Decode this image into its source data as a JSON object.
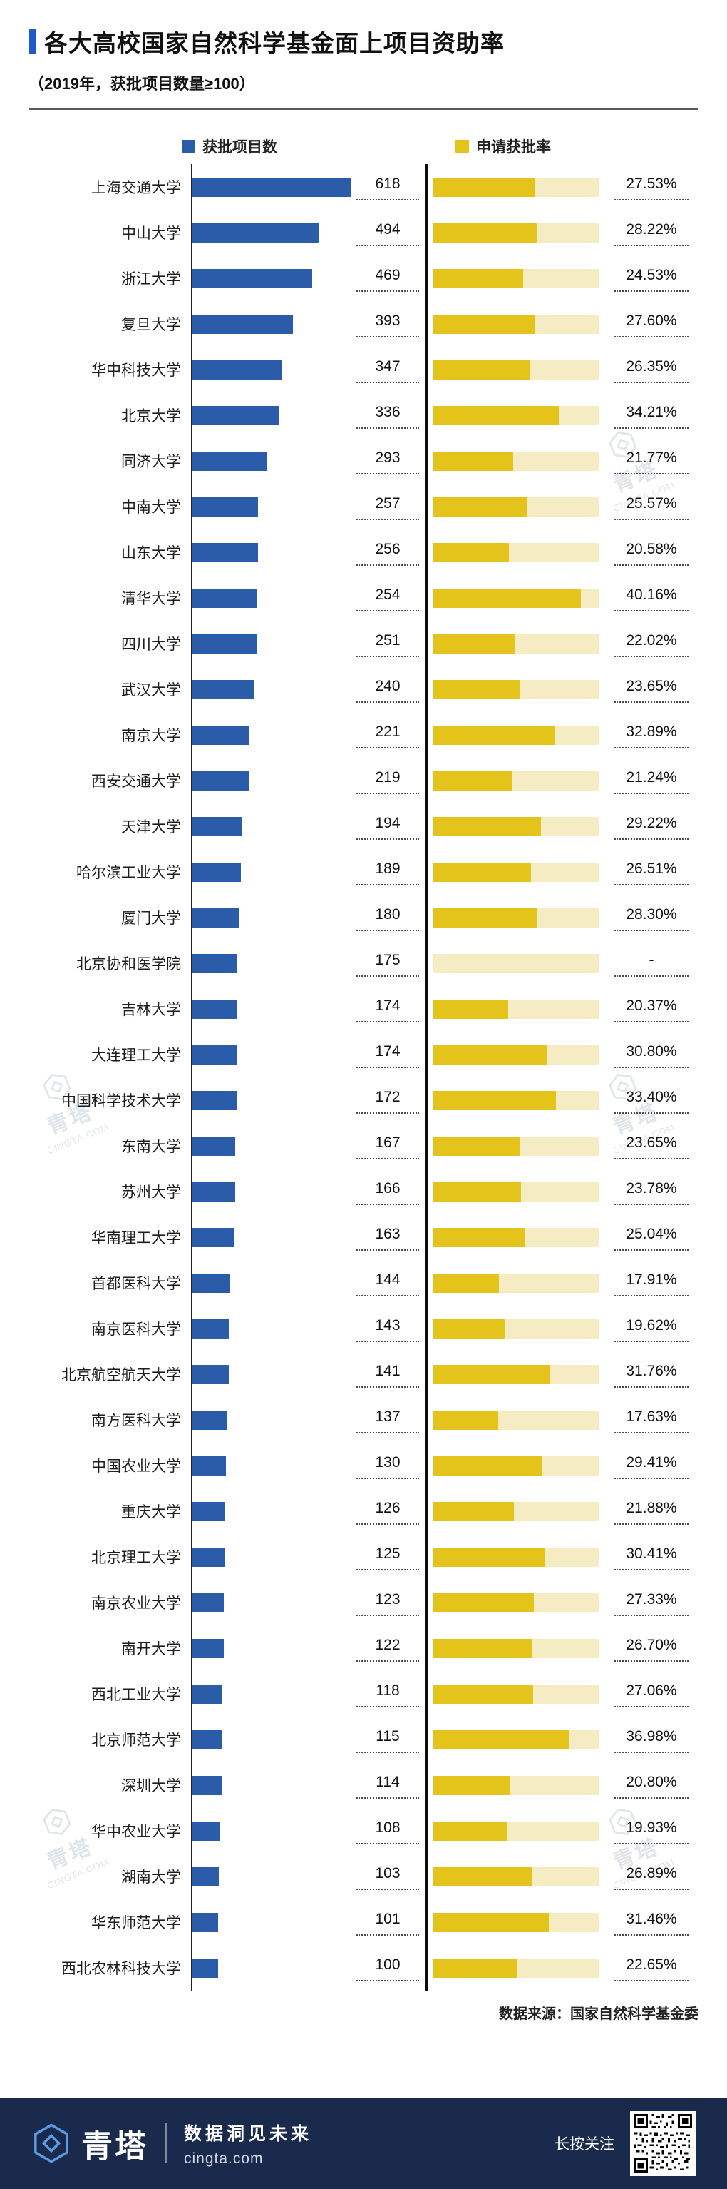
{
  "header": {
    "title": "各大高校国家自然科学基金面上项目资助率",
    "subtitle": "（2019年，获批项目数量≥100）"
  },
  "legend": {
    "count_label": "获批项目数",
    "rate_label": "申请获批率"
  },
  "colors": {
    "accent": "#1E5BC8",
    "count_bar": "#2A5CAA",
    "rate_bar": "#E4C41A",
    "rate_track": "#F6ECC3",
    "footer_bg": "#1A2A4D"
  },
  "source": "数据来源：国家自然科学基金委",
  "watermark": {
    "line1": "青塔",
    "line2": "CINGTA.COM"
  },
  "footer": {
    "brand": "青塔",
    "slogan": "数据洞见未来",
    "site": "cingta.com",
    "follow": "长按关注"
  },
  "chart_data": {
    "type": "bar",
    "orientation": "horizontal",
    "title": "各大高校国家自然科学基金面上项目资助率",
    "subtitle": "（2019年，获批项目数量≥100）",
    "count_axis_max": 618,
    "rate_axis_max": 45,
    "grid": false,
    "legend_position": "top",
    "categories": [
      "上海交通大学",
      "中山大学",
      "浙江大学",
      "复旦大学",
      "华中科技大学",
      "北京大学",
      "同济大学",
      "中南大学",
      "山东大学",
      "清华大学",
      "四川大学",
      "武汉大学",
      "南京大学",
      "西安交通大学",
      "天津大学",
      "哈尔滨工业大学",
      "厦门大学",
      "北京协和医学院",
      "吉林大学",
      "大连理工大学",
      "中国科学技术大学",
      "东南大学",
      "苏州大学",
      "华南理工大学",
      "首都医科大学",
      "南京医科大学",
      "北京航空航天大学",
      "南方医科大学",
      "中国农业大学",
      "重庆大学",
      "北京理工大学",
      "南京农业大学",
      "南开大学",
      "西北工业大学",
      "北京师范大学",
      "深圳大学",
      "华中农业大学",
      "湖南大学",
      "华东师范大学",
      "西北农林科技大学"
    ],
    "series": [
      {
        "name": "获批项目数",
        "color": "#2A5CAA",
        "values": [
          618,
          494,
          469,
          393,
          347,
          336,
          293,
          257,
          256,
          254,
          251,
          240,
          221,
          219,
          194,
          189,
          180,
          175,
          174,
          174,
          172,
          167,
          166,
          163,
          144,
          143,
          141,
          137,
          130,
          126,
          125,
          123,
          122,
          118,
          115,
          114,
          108,
          103,
          101,
          100
        ],
        "labels": [
          "618",
          "494",
          "469",
          "393",
          "347",
          "336",
          "293",
          "257",
          "256",
          "254",
          "251",
          "240",
          "221",
          "219",
          "194",
          "189",
          "180",
          "175",
          "174",
          "174",
          "172",
          "167",
          "166",
          "163",
          "144",
          "143",
          "141",
          "137",
          "130",
          "126",
          "125",
          "123",
          "122",
          "118",
          "115",
          "114",
          "108",
          "103",
          "101",
          "100"
        ]
      },
      {
        "name": "申请获批率",
        "color": "#E4C41A",
        "values": [
          27.53,
          28.22,
          24.53,
          27.6,
          26.35,
          34.21,
          21.77,
          25.57,
          20.58,
          40.16,
          22.02,
          23.65,
          32.89,
          21.24,
          29.22,
          26.51,
          28.3,
          null,
          20.37,
          30.8,
          33.4,
          23.65,
          23.78,
          25.04,
          17.91,
          19.62,
          31.76,
          17.63,
          29.41,
          21.88,
          30.41,
          27.33,
          26.7,
          27.06,
          36.98,
          20.8,
          19.93,
          26.89,
          31.46,
          22.65
        ],
        "labels": [
          "27.53%",
          "28.22%",
          "24.53%",
          "27.60%",
          "26.35%",
          "34.21%",
          "21.77%",
          "25.57%",
          "20.58%",
          "40.16%",
          "22.02%",
          "23.65%",
          "32.89%",
          "21.24%",
          "29.22%",
          "26.51%",
          "28.30%",
          "-",
          "20.37%",
          "30.80%",
          "33.40%",
          "23.65%",
          "23.78%",
          "25.04%",
          "17.91%",
          "19.62%",
          "31.76%",
          "17.63%",
          "29.41%",
          "21.88%",
          "30.41%",
          "27.33%",
          "26.70%",
          "27.06%",
          "36.98%",
          "20.80%",
          "19.93%",
          "26.89%",
          "31.46%",
          "22.65%"
        ]
      }
    ]
  }
}
